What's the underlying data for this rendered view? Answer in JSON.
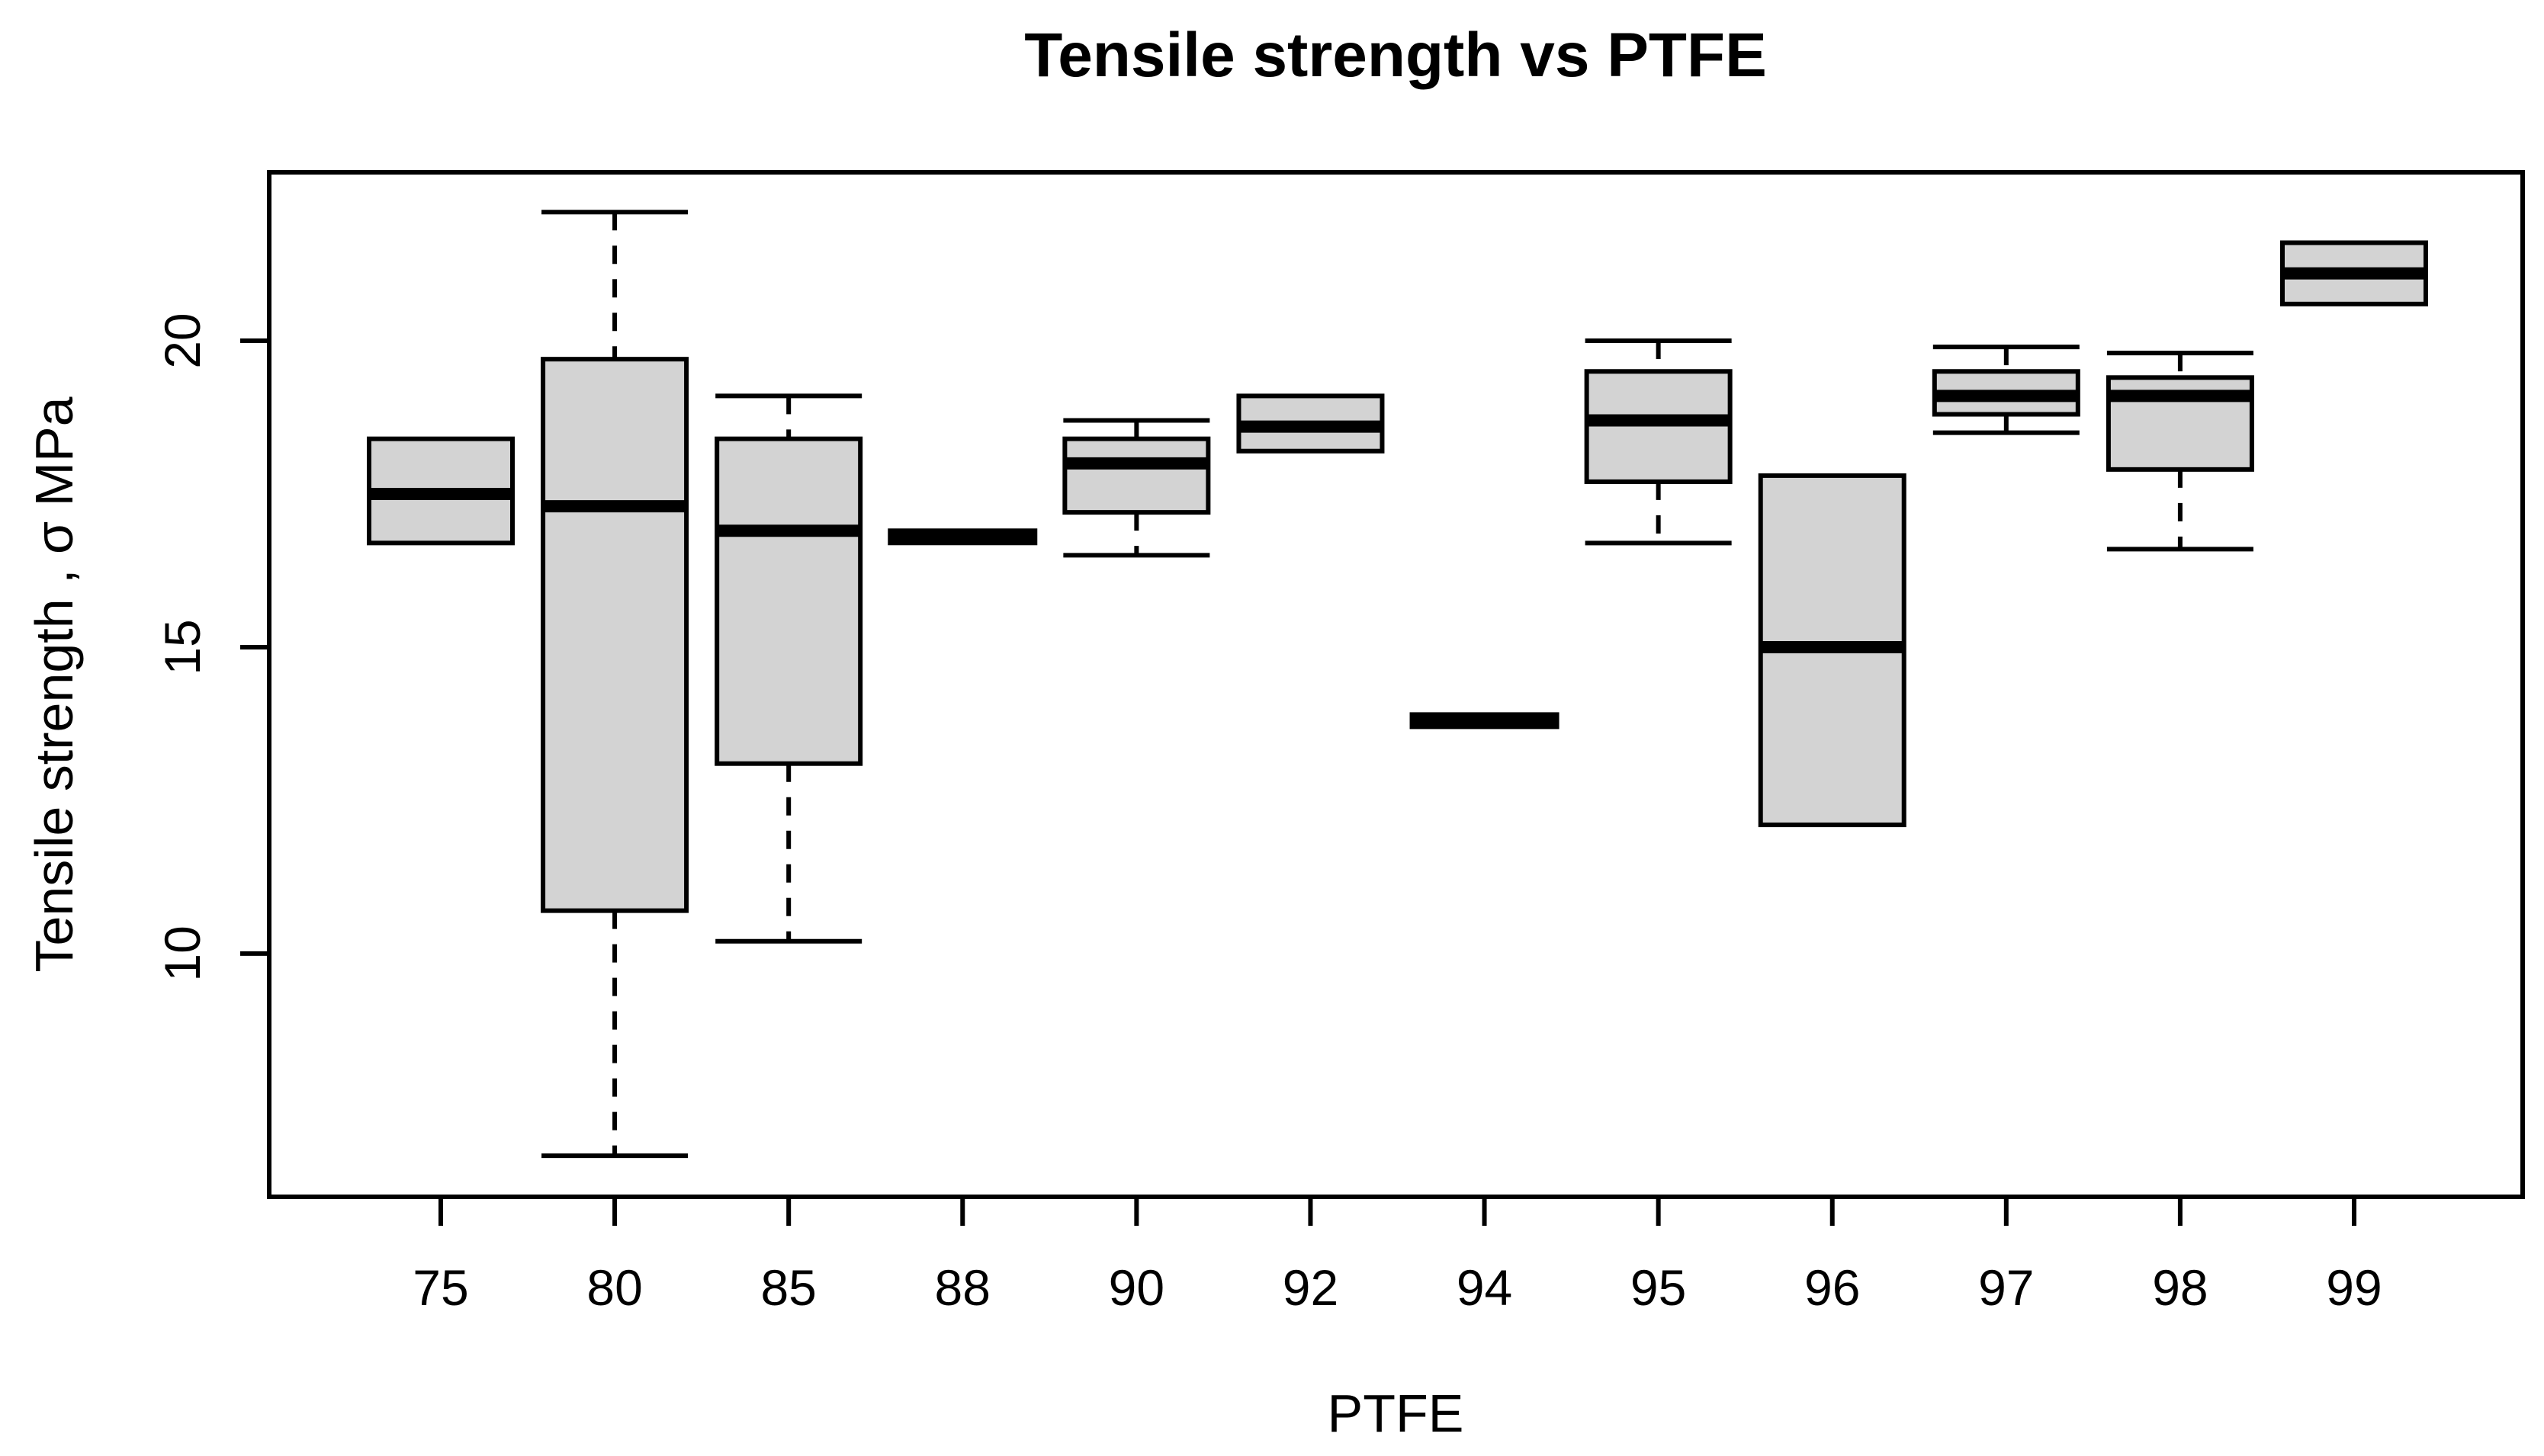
{
  "page": {
    "background": "#ffffff"
  },
  "chart_data": {
    "type": "boxplot",
    "title": "Tensile strength vs PTFE",
    "xlabel": "PTFE",
    "ylabel": "Tensile strength , σ MPa",
    "categories": [
      "75",
      "80",
      "85",
      "88",
      "90",
      "92",
      "94",
      "95",
      "96",
      "97",
      "98",
      "99"
    ],
    "yticks": [
      10,
      15,
      20
    ],
    "ylim": [
      6.03,
      22.75
    ],
    "grid": false,
    "legend": "none",
    "box_fill": "#d3d3d3",
    "line_color": "#000000",
    "series": [
      {
        "category": "75",
        "min": 16.7,
        "q1": 16.7,
        "median": 17.5,
        "q3": 18.4,
        "max": 18.4
      },
      {
        "category": "80",
        "min": 6.7,
        "q1": 10.7,
        "median": 17.3,
        "q3": 19.7,
        "max": 22.1
      },
      {
        "category": "85",
        "min": 10.2,
        "q1": 13.1,
        "median": 16.9,
        "q3": 18.4,
        "max": 19.1
      },
      {
        "category": "88",
        "min": 16.8,
        "q1": 16.8,
        "median": 16.8,
        "q3": 16.8,
        "max": 16.8
      },
      {
        "category": "90",
        "min": 16.5,
        "q1": 17.2,
        "median": 18.0,
        "q3": 18.4,
        "max": 18.7
      },
      {
        "category": "92",
        "min": 18.2,
        "q1": 18.2,
        "median": 18.6,
        "q3": 19.1,
        "max": 19.1
      },
      {
        "category": "94",
        "min": 13.8,
        "q1": 13.8,
        "median": 13.8,
        "q3": 13.8,
        "max": 13.8
      },
      {
        "category": "95",
        "min": 16.7,
        "q1": 17.7,
        "median": 18.7,
        "q3": 19.5,
        "max": 20.0
      },
      {
        "category": "96",
        "min": 12.1,
        "q1": 12.1,
        "median": 15.0,
        "q3": 17.8,
        "max": 17.8
      },
      {
        "category": "97",
        "min": 18.5,
        "q1": 18.8,
        "median": 19.1,
        "q3": 19.5,
        "max": 19.9
      },
      {
        "category": "98",
        "min": 16.6,
        "q1": 17.9,
        "median": 19.1,
        "q3": 19.4,
        "max": 19.8
      },
      {
        "category": "99",
        "min": 20.6,
        "q1": 20.6,
        "median": 21.1,
        "q3": 21.6,
        "max": 21.6
      }
    ]
  }
}
